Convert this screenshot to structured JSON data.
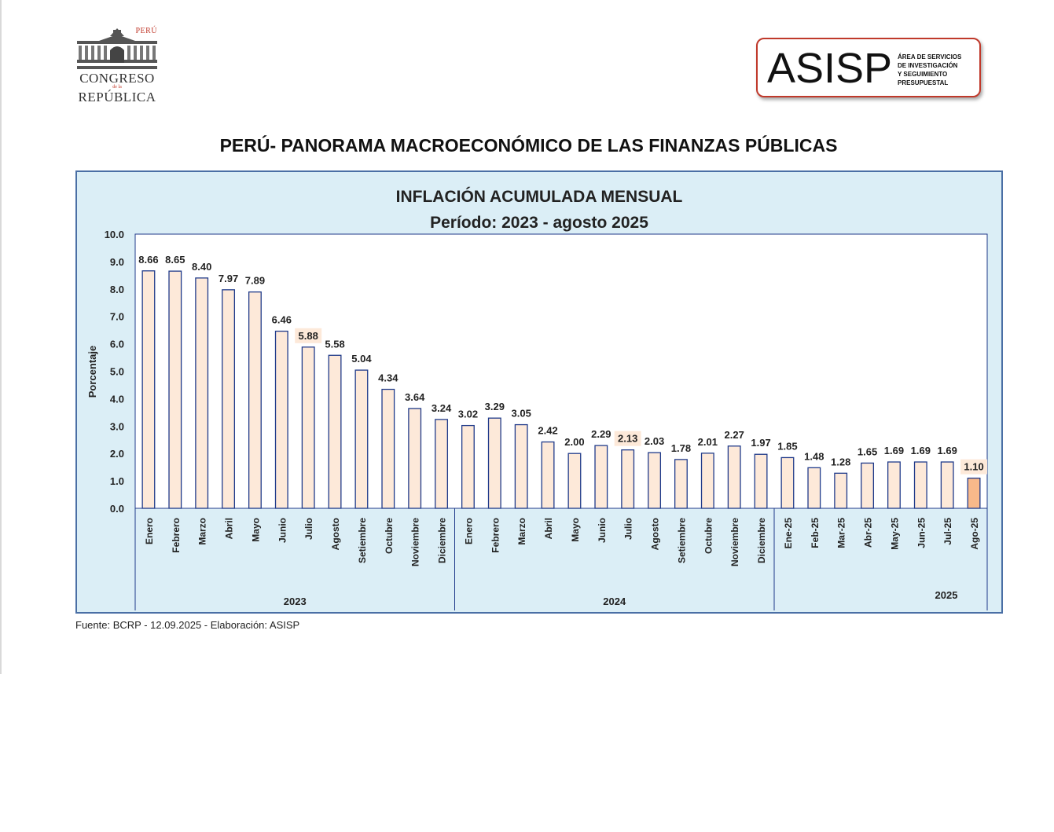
{
  "logos": {
    "congreso_peru": "PERÚ",
    "congreso_line1": "CONGRESO",
    "congreso_line2": "de la",
    "congreso_line3": "REPÚBLICA",
    "asisp_big": "ASISP",
    "asisp_small": [
      "ÁREA DE SERVICIOS",
      "DE INVESTIGACIÓN",
      "Y SEGUIMIENTO",
      "PRESUPUESTAL"
    ]
  },
  "page_title": "PERÚ- PANORAMA MACROECONÓMICO DE LAS FINANZAS PÚBLICAS",
  "source": "Fuente: BCRP - 12.09.2025  - Elaboración: ASISP",
  "colors": {
    "panel_bg": "#dbeef6",
    "border": "#4a6fa5",
    "bar_fill": "#fde9d9",
    "bar_highlight": "#f8b98a",
    "label_highlight_bg": "#fde9d9",
    "axis": "#1f3a8a"
  },
  "chart_data": {
    "type": "bar",
    "title": "INFLACIÓN ACUMULADA MENSUAL",
    "subtitle": "Período: 2023 - agosto 2025",
    "xlabel": "",
    "ylabel": "Porcentaje",
    "ylim": [
      0,
      10
    ],
    "yticks": [
      "0.0",
      "1.0",
      "2.0",
      "3.0",
      "4.0",
      "5.0",
      "6.0",
      "7.0",
      "8.0",
      "9.0",
      "10.0"
    ],
    "categories": [
      "Enero",
      "Febrero",
      "Marzo",
      "Abril",
      "Mayo",
      "Junio",
      "Julio",
      "Agosto",
      "Setiembre",
      "Octubre",
      "Noviembre",
      "Diciembre",
      "Enero",
      "Febrero",
      "Marzo",
      "Abril",
      "Mayo",
      "Junio",
      "Julio",
      "Agosto",
      "Setiembre",
      "Octubre",
      "Noviembre",
      "Diciembre",
      "Ene-25",
      "Feb-25",
      "Mar-25",
      "Abr-25",
      "May-25",
      "Jun-25",
      "Jul-25",
      "Ago-25"
    ],
    "values": [
      8.66,
      8.65,
      8.4,
      7.97,
      7.89,
      6.46,
      5.88,
      5.58,
      5.04,
      4.34,
      3.64,
      3.24,
      3.02,
      3.29,
      3.05,
      2.42,
      2.0,
      2.29,
      2.13,
      2.03,
      1.78,
      2.01,
      2.27,
      1.97,
      1.85,
      1.48,
      1.28,
      1.65,
      1.69,
      1.69,
      1.69,
      1.1
    ],
    "value_labels": [
      "8.66",
      "8.65",
      "8.40",
      "7.97",
      "7.89",
      "6.46",
      "5.88",
      "5.58",
      "5.04",
      "4.34",
      "3.64",
      "3.24",
      "3.02",
      "3.29",
      "3.05",
      "2.42",
      "2.00",
      "2.29",
      "2.13",
      "2.03",
      "1.78",
      "2.01",
      "2.27",
      "1.97",
      "1.85",
      "1.48",
      "1.28",
      "1.65",
      "1.69",
      "1.69",
      "1.69",
      "1.10"
    ],
    "highlighted_labels": [
      6,
      18,
      31
    ],
    "highlighted_bar": 31,
    "groups": [
      {
        "label": "2023",
        "start": 0,
        "count": 12
      },
      {
        "label": "2024",
        "start": 12,
        "count": 12
      },
      {
        "label": "2025",
        "start": 24,
        "count": 8
      }
    ],
    "grid": false,
    "legend": "none"
  }
}
